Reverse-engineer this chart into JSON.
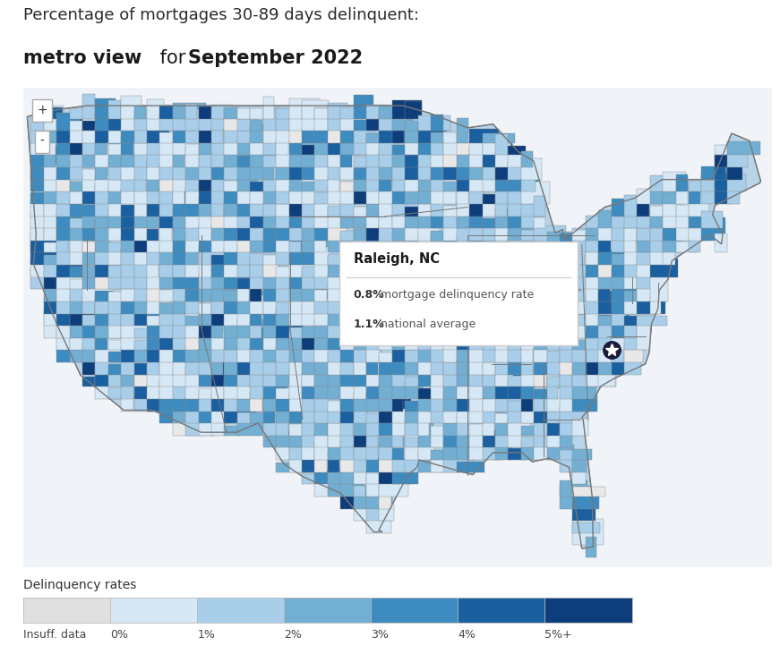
{
  "title_line1": "Percentage of mortgages 30-89 days delinquent:",
  "title_line2_part1": "metro view",
  "title_line2_part2": " for ",
  "title_line2_part3": "September 2022",
  "tooltip_title": "Raleigh, NC",
  "tooltip_line1_bold": "0.8%",
  "tooltip_line1_rest": " mortgage delinquency rate",
  "tooltip_line2_bold": "1.1%",
  "tooltip_line2_rest": " national average",
  "legend_title": "Delinquency rates",
  "legend_labels": [
    "Insuff. data",
    "0%",
    "1%",
    "2%",
    "3%",
    "4%",
    "5%+"
  ],
  "legend_colors": [
    "#e0e0e0",
    "#d6e8f5",
    "#a8ceea",
    "#72afd3",
    "#3d8bbf",
    "#1a5fa0",
    "#0d3d7a"
  ],
  "background_color": "#ffffff",
  "map_facecolor": "#c8dff0",
  "title_fontsize": 13,
  "title_bold_fontsize": 15,
  "legend_label_fontsize": 9,
  "zoom_plus_label": "+",
  "zoom_minus_label": "-"
}
